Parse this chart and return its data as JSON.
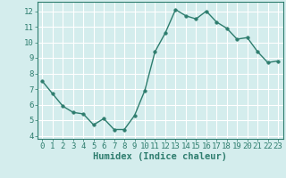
{
  "x": [
    0,
    1,
    2,
    3,
    4,
    5,
    6,
    7,
    8,
    9,
    10,
    11,
    12,
    13,
    14,
    15,
    16,
    17,
    18,
    19,
    20,
    21,
    22,
    23
  ],
  "y": [
    7.5,
    6.7,
    5.9,
    5.5,
    5.4,
    4.7,
    5.1,
    4.4,
    4.4,
    5.3,
    6.9,
    9.4,
    10.6,
    12.1,
    11.7,
    11.5,
    12.0,
    11.3,
    10.9,
    10.2,
    10.3,
    9.4,
    8.7,
    8.8
  ],
  "xlabel": "Humidex (Indice chaleur)",
  "xlim": [
    -0.5,
    23.5
  ],
  "ylim": [
    3.8,
    12.6
  ],
  "yticks": [
    4,
    5,
    6,
    7,
    8,
    9,
    10,
    11,
    12
  ],
  "xticks": [
    0,
    1,
    2,
    3,
    4,
    5,
    6,
    7,
    8,
    9,
    10,
    11,
    12,
    13,
    14,
    15,
    16,
    17,
    18,
    19,
    20,
    21,
    22,
    23
  ],
  "line_color": "#2e7d6e",
  "bg_color": "#d4eded",
  "grid_color": "#ffffff",
  "marker_size": 2.5,
  "line_width": 1.0,
  "tick_fontsize": 6.5,
  "xlabel_fontsize": 7.5
}
